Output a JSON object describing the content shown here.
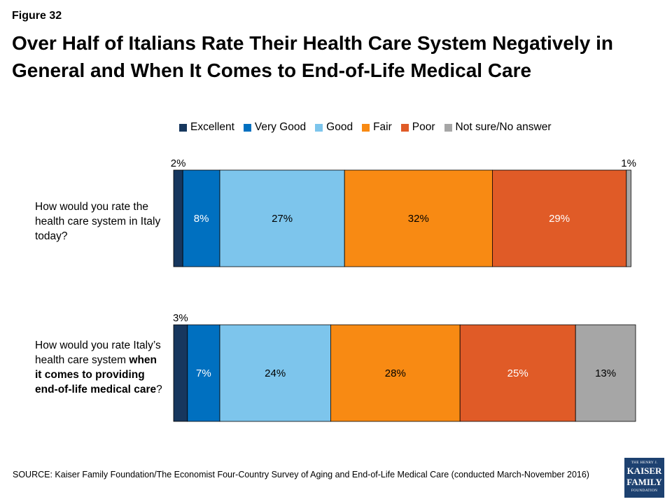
{
  "figure_label": "Figure 32",
  "title": "Over Half of Italians Rate Their Health Care System Negatively in General and When It Comes to End-of-Life Medical Care",
  "chart_data": {
    "type": "bar",
    "orientation": "horizontal",
    "stacked": true,
    "legend_position": "top",
    "categories": [
      "How would you rate the health care system in Italy today?",
      "How would you rate Italy’s health care system when it comes to providing end-of-life medical care?"
    ],
    "series": [
      {
        "name": "Excellent",
        "color": "#17375e",
        "values": [
          2,
          3
        ],
        "labels": [
          "2%",
          "3%"
        ]
      },
      {
        "name": "Very Good",
        "color": "#0070c0",
        "values": [
          8,
          7
        ],
        "labels": [
          "8%",
          "7%"
        ]
      },
      {
        "name": "Good",
        "color": "#7dc5ec",
        "values": [
          27,
          24
        ],
        "labels": [
          "27%",
          "24%"
        ]
      },
      {
        "name": "Fair",
        "color": "#f88a13",
        "values": [
          32,
          28
        ],
        "labels": [
          "32%",
          "28%"
        ]
      },
      {
        "name": "Poor",
        "color": "#e05b27",
        "values": [
          29,
          25
        ],
        "labels": [
          "29%",
          "25%"
        ]
      },
      {
        "name": "Not sure/No answer",
        "color": "#a6a6a6",
        "values": [
          1,
          13
        ],
        "labels": [
          "1%",
          "13%"
        ]
      }
    ]
  },
  "questions": [
    {
      "text": "How would you rate the health care system in Italy today?"
    },
    {
      "pre": "How would you rate Italy’s health care system ",
      "bold": "when it comes to providing end-of-life medical care",
      "post": "?"
    }
  ],
  "source": "SOURCE: Kaiser Family Foundation/The Economist Four-Country Survey of Aging and End-of-Life Medical Care (conducted March-November 2016)",
  "logo": {
    "line1": "THE HENRY J.",
    "line2": "KAISER",
    "line3": "FAMILY",
    "line4": "FOUNDATION"
  }
}
